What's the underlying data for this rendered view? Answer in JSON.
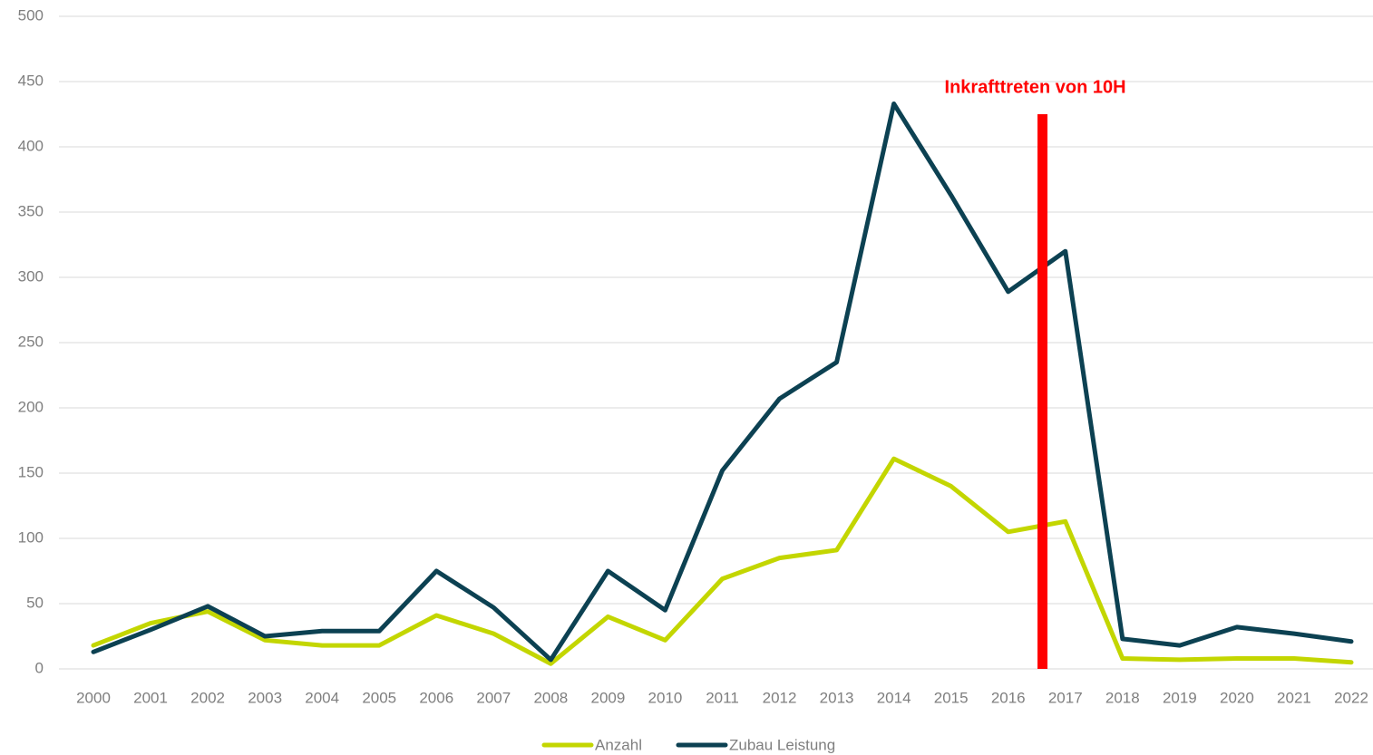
{
  "chart_data": {
    "type": "line",
    "x": [
      2000,
      2001,
      2002,
      2003,
      2004,
      2005,
      2006,
      2007,
      2008,
      2009,
      2010,
      2011,
      2012,
      2013,
      2014,
      2015,
      2016,
      2017,
      2018,
      2019,
      2020,
      2021,
      2022
    ],
    "xlim": [
      2000,
      2022
    ],
    "xticks": [
      2000,
      2001,
      2002,
      2003,
      2004,
      2005,
      2006,
      2007,
      2008,
      2009,
      2010,
      2011,
      2012,
      2013,
      2014,
      2015,
      2016,
      2017,
      2018,
      2019,
      2020,
      2021,
      2022
    ],
    "ylim": [
      0,
      500
    ],
    "yticks": [
      0,
      50,
      100,
      150,
      200,
      250,
      300,
      350,
      400,
      450,
      500
    ],
    "grid": true,
    "legend": "bottom",
    "series": [
      {
        "name": "Anzahl",
        "color": "#c3d600",
        "values": [
          18,
          35,
          44,
          22,
          18,
          18,
          41,
          27,
          4,
          40,
          22,
          69,
          85,
          91,
          161,
          140,
          105,
          113,
          8,
          7,
          8,
          8,
          5
        ]
      },
      {
        "name": "Zubau Leistung",
        "color": "#0c4152",
        "values": [
          13,
          30,
          48,
          25,
          29,
          29,
          75,
          47,
          7,
          75,
          45,
          152,
          207,
          235,
          433,
          363,
          289,
          320,
          23,
          18,
          32,
          27,
          21
        ]
      }
    ],
    "annotation": {
      "text": "Inkrafttreten von 10H",
      "x": 2016.6,
      "y": 425,
      "color": "#ff0000"
    }
  }
}
